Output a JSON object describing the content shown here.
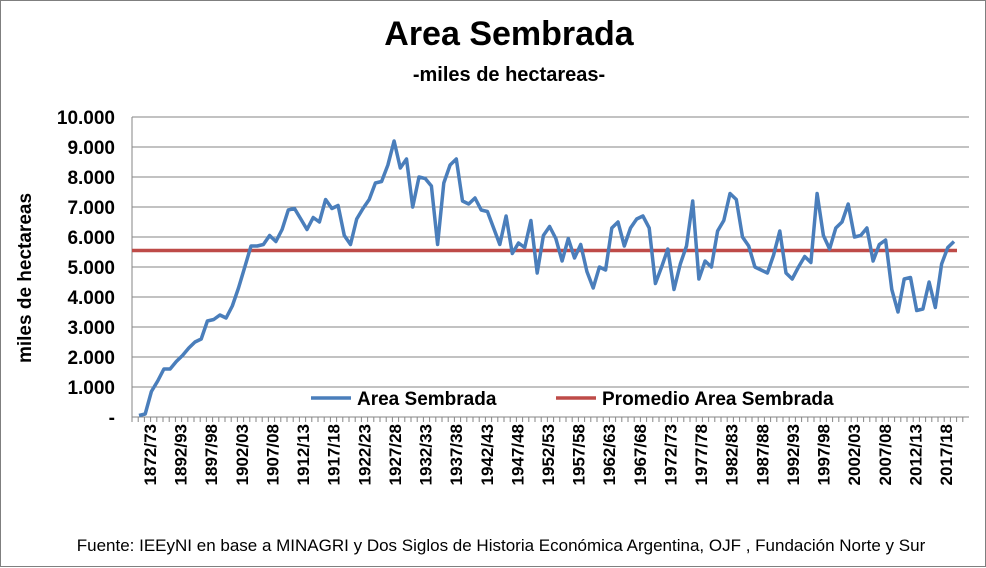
{
  "chart_data": {
    "type": "line",
    "title": "Area Sembrada",
    "subtitle": "-miles de hectareas-",
    "xlabel": "",
    "ylabel": "miles de hectareas",
    "ylim": [
      0,
      10000
    ],
    "y_ticks": [
      "-",
      "1.000",
      "2.000",
      "3.000",
      "4.000",
      "5.000",
      "6.000",
      "7.000",
      "8.000",
      "9.000",
      "10.000"
    ],
    "x_ticks": [
      "1872/73",
      "1892/93",
      "1897/98",
      "1902/03",
      "1907/08",
      "1912/13",
      "1917/18",
      "1922/23",
      "1927/28",
      "1932/33",
      "1937/38",
      "1942/43",
      "1947/48",
      "1952/53",
      "1957/58",
      "1962/63",
      "1967/68",
      "1972/73",
      "1977/78",
      "1982/83",
      "1987/88",
      "1992/93",
      "1997/98",
      "2002/03",
      "2007/08",
      "2012/13",
      "2017/18"
    ],
    "grid": true,
    "legend_position": "bottom",
    "colors": {
      "series": "#4a7ebb",
      "average": "#be4b48"
    },
    "series": [
      {
        "name": "Area Sembrada",
        "values": [
          50,
          100,
          850,
          1200,
          1600,
          1600,
          1850,
          2050,
          2300,
          2500,
          2600,
          3200,
          3250,
          3400,
          3300,
          3700,
          4300,
          5000,
          5700,
          5700,
          5750,
          6050,
          5850,
          6250,
          6900,
          6950,
          6600,
          6250,
          6650,
          6500,
          7250,
          6950,
          7050,
          6050,
          5750,
          6600,
          6950,
          7250,
          7800,
          7850,
          8400,
          9200,
          8300,
          8600,
          7000,
          8000,
          7950,
          7700,
          5750,
          7800,
          8400,
          8600,
          7200,
          7100,
          7300,
          6900,
          6850,
          6300,
          5750,
          6700,
          5450,
          5800,
          5650,
          6550,
          4800,
          6050,
          6350,
          5950,
          5200,
          5950,
          5300,
          5750,
          4850,
          4300,
          5000,
          4900,
          6300,
          6500,
          5700,
          6300,
          6600,
          6700,
          6300,
          4450,
          5000,
          5600,
          4250,
          5100,
          5700,
          7200,
          4600,
          5200,
          5000,
          6200,
          6550,
          7450,
          7250,
          6000,
          5700,
          5000,
          4900,
          4800,
          5400,
          6200,
          4800,
          4600,
          5000,
          5350,
          5150,
          7450,
          6050,
          5600,
          6300,
          6500,
          7100,
          6000,
          6050,
          6300,
          5200,
          5750,
          5900,
          4250,
          3500,
          4600,
          4650,
          3550,
          3600,
          4500,
          3650,
          5100,
          5650,
          5850
        ]
      },
      {
        "name": "Promedio Area Sembrada",
        "value": 5550
      }
    ]
  },
  "source_note": "Fuente: IEEyNI en base a  MINAGRI y Dos Siglos de Historia Económica Argentina, OJF , Fundación Norte y Sur"
}
